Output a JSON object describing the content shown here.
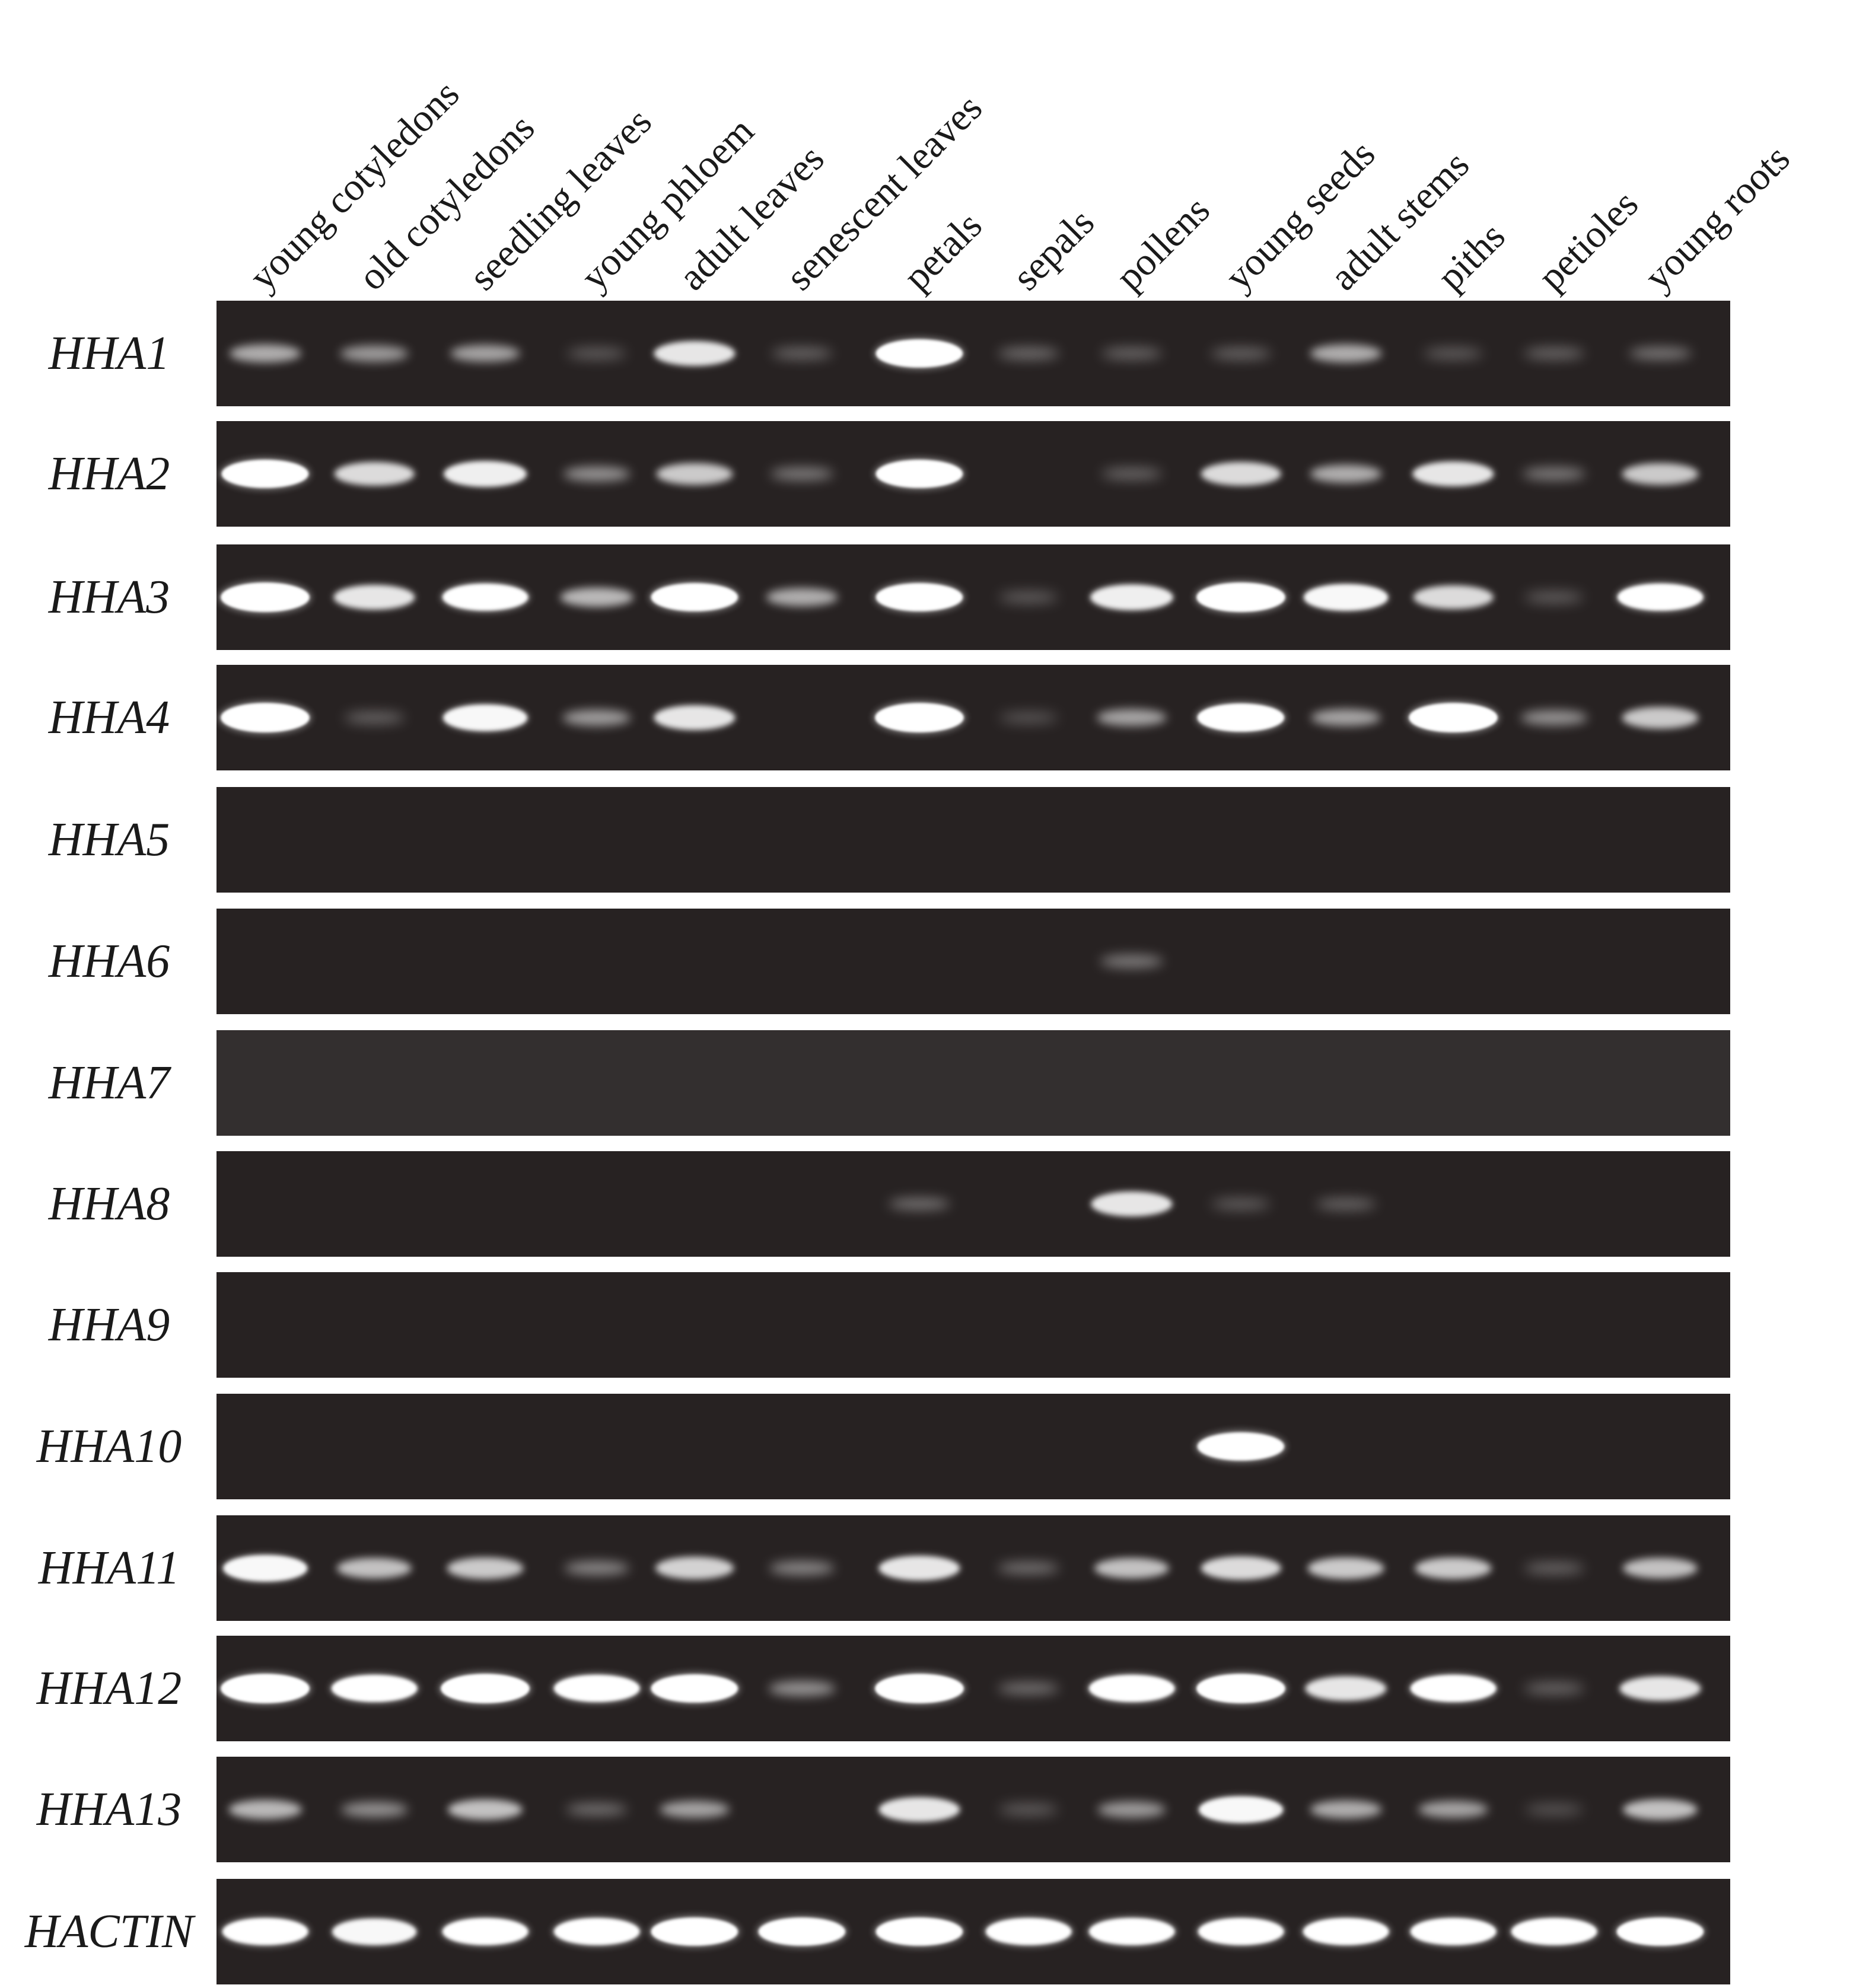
{
  "lanes": [
    "young cotyledons",
    "old cotyledons",
    "seedling leaves",
    "young phloem",
    "adult leaves",
    "senescent leaves",
    "petals",
    "sepals",
    "pollens",
    "young seeds",
    "adult stems",
    "piths",
    "petioles",
    "young roots"
  ],
  "colors": {
    "gel_background": "#272222",
    "gel_background_hha7": "#332f2f",
    "band": "#ffffff",
    "label_text": "#1a1a1a"
  },
  "rows": [
    {
      "gene": "HHA1",
      "intensity": [
        0.45,
        0.35,
        0.4,
        0.08,
        0.75,
        0.12,
        0.95,
        0.14,
        0.12,
        0.1,
        0.45,
        0.08,
        0.12,
        0.18
      ]
    },
    {
      "gene": "HHA2",
      "intensity": [
        0.95,
        0.7,
        0.8,
        0.3,
        0.6,
        0.2,
        0.95,
        0.0,
        0.12,
        0.7,
        0.45,
        0.75,
        0.2,
        0.6
      ]
    },
    {
      "gene": "HHA3",
      "intensity": [
        1.0,
        0.75,
        0.9,
        0.5,
        0.95,
        0.45,
        0.95,
        0.08,
        0.8,
        1.0,
        0.85,
        0.7,
        0.08,
        0.9
      ]
    },
    {
      "gene": "HHA4",
      "intensity": [
        1.0,
        0.1,
        0.85,
        0.35,
        0.75,
        0.0,
        1.0,
        0.05,
        0.4,
        0.95,
        0.4,
        1.0,
        0.3,
        0.6
      ]
    },
    {
      "gene": "HHA5",
      "intensity": [
        0,
        0,
        0,
        0,
        0,
        0,
        0,
        0,
        0,
        0,
        0,
        0,
        0,
        0
      ]
    },
    {
      "gene": "HHA6",
      "intensity": [
        0,
        0,
        0,
        0,
        0,
        0,
        0,
        0,
        0.2,
        0,
        0,
        0,
        0,
        0
      ]
    },
    {
      "gene": "HHA7",
      "intensity": [
        0,
        0,
        0,
        0,
        0,
        0,
        0,
        0,
        0,
        0,
        0,
        0,
        0,
        0
      ]
    },
    {
      "gene": "HHA8",
      "intensity": [
        0,
        0,
        0,
        0,
        0,
        0,
        0.15,
        0,
        0.75,
        0.08,
        0.1,
        0,
        0,
        0
      ]
    },
    {
      "gene": "HHA9",
      "intensity": [
        0,
        0,
        0,
        0,
        0,
        0,
        0,
        0,
        0,
        0,
        0,
        0,
        0,
        0
      ]
    },
    {
      "gene": "HHA10",
      "intensity": [
        0,
        0,
        0,
        0,
        0,
        0,
        0,
        0,
        0,
        0.95,
        0,
        0,
        0,
        0
      ]
    },
    {
      "gene": "HHA11",
      "intensity": [
        0.85,
        0.55,
        0.6,
        0.25,
        0.65,
        0.25,
        0.75,
        0.15,
        0.55,
        0.7,
        0.6,
        0.6,
        0.1,
        0.55
      ]
    },
    {
      "gene": "HHA12",
      "intensity": [
        1.0,
        0.9,
        1.0,
        0.9,
        0.95,
        0.3,
        1.0,
        0.15,
        0.9,
        1.0,
        0.75,
        0.9,
        0.12,
        0.75
      ]
    },
    {
      "gene": "HHA13",
      "intensity": [
        0.5,
        0.3,
        0.55,
        0.15,
        0.4,
        0.0,
        0.75,
        0.08,
        0.35,
        0.85,
        0.45,
        0.4,
        0.05,
        0.55
      ]
    },
    {
      "gene": "HACTIN",
      "intensity": [
        0.9,
        0.85,
        0.9,
        0.9,
        0.95,
        0.95,
        0.95,
        0.9,
        0.9,
        0.9,
        0.9,
        0.9,
        0.9,
        0.95
      ]
    }
  ]
}
